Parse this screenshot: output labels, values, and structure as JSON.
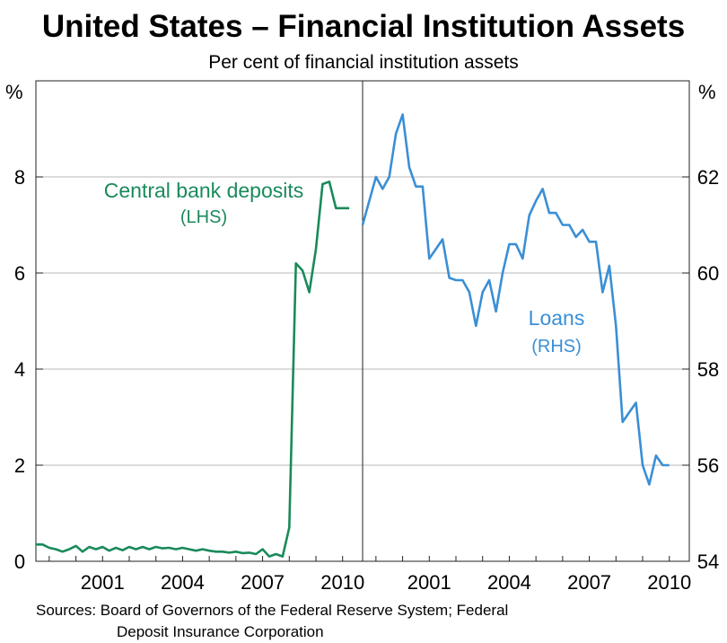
{
  "title": "United States – Financial Institution Assets",
  "subtitle": "Per cent of financial institution assets",
  "sources_line1": "Sources: Board of Governors of the Federal Reserve System; Federal",
  "sources_line2": "Deposit Insurance Corporation",
  "chart_data": [
    {
      "type": "line",
      "panel": "left",
      "axis_unit": "%",
      "ylim": [
        0,
        10
      ],
      "yticks": [
        0,
        2,
        4,
        6,
        8
      ],
      "xlim": [
        1998.5,
        2010.75
      ],
      "xticks": [
        2001,
        2004,
        2007,
        2010
      ],
      "grid": true,
      "color": "#1a8a5a",
      "series": [
        {
          "label_line1": "Central bank deposits",
          "label_line2": "(LHS)",
          "x": [
            1998.5,
            1998.75,
            1999.0,
            1999.25,
            1999.5,
            1999.75,
            2000.0,
            2000.25,
            2000.5,
            2000.75,
            2001.0,
            2001.25,
            2001.5,
            2001.75,
            2002.0,
            2002.25,
            2002.5,
            2002.75,
            2003.0,
            2003.25,
            2003.5,
            2003.75,
            2004.0,
            2004.25,
            2004.5,
            2004.75,
            2005.0,
            2005.25,
            2005.5,
            2005.75,
            2006.0,
            2006.25,
            2006.5,
            2006.75,
            2007.0,
            2007.25,
            2007.5,
            2007.75,
            2008.0,
            2008.25,
            2008.5,
            2008.75,
            2009.0,
            2009.25,
            2009.5,
            2009.75,
            2010.0,
            2010.25
          ],
          "y": [
            0.35,
            0.35,
            0.28,
            0.25,
            0.2,
            0.25,
            0.32,
            0.2,
            0.3,
            0.25,
            0.3,
            0.22,
            0.28,
            0.23,
            0.3,
            0.25,
            0.3,
            0.25,
            0.3,
            0.27,
            0.28,
            0.25,
            0.28,
            0.25,
            0.22,
            0.25,
            0.22,
            0.2,
            0.2,
            0.18,
            0.2,
            0.17,
            0.18,
            0.15,
            0.25,
            0.1,
            0.15,
            0.1,
            0.7,
            6.2,
            6.05,
            5.6,
            6.5,
            7.85,
            7.9,
            7.35,
            7.35,
            7.35
          ]
        }
      ]
    },
    {
      "type": "line",
      "panel": "right",
      "axis_unit": "%",
      "ylim": [
        54,
        64
      ],
      "yticks": [
        54,
        56,
        58,
        60,
        62
      ],
      "xlim": [
        1998.5,
        2010.75
      ],
      "xticks": [
        2001,
        2004,
        2007,
        2010
      ],
      "grid": true,
      "color": "#3a8fd6",
      "series": [
        {
          "label_line1": "Loans",
          "label_line2": "(RHS)",
          "x": [
            1998.5,
            1998.75,
            1999.0,
            1999.25,
            1999.5,
            1999.75,
            2000.0,
            2000.25,
            2000.5,
            2000.75,
            2001.0,
            2001.25,
            2001.5,
            2001.75,
            2002.0,
            2002.25,
            2002.5,
            2002.75,
            2003.0,
            2003.25,
            2003.5,
            2003.75,
            2004.0,
            2004.25,
            2004.5,
            2004.75,
            2005.0,
            2005.25,
            2005.5,
            2005.75,
            2006.0,
            2006.25,
            2006.5,
            2006.75,
            2007.0,
            2007.25,
            2007.5,
            2007.75,
            2008.0,
            2008.25,
            2008.5,
            2008.75,
            2009.0,
            2009.25,
            2009.5,
            2009.75,
            2010.0
          ],
          "y": [
            61.0,
            61.5,
            62.0,
            61.75,
            62.0,
            62.9,
            63.3,
            62.2,
            61.8,
            61.8,
            60.3,
            60.5,
            60.7,
            59.9,
            59.85,
            59.85,
            59.6,
            58.9,
            59.6,
            59.85,
            59.2,
            60.0,
            60.6,
            60.6,
            60.3,
            61.2,
            61.5,
            61.75,
            61.25,
            61.25,
            61.0,
            61.0,
            60.75,
            60.9,
            60.65,
            60.65,
            59.6,
            60.15,
            58.9,
            56.9,
            57.1,
            57.3,
            56.0,
            55.6,
            56.2,
            56.0,
            56.0
          ]
        }
      ]
    }
  ]
}
